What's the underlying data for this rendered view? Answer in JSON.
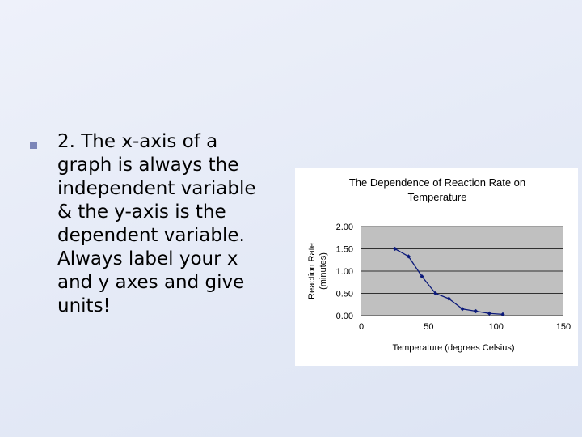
{
  "slide": {
    "bullet_lines": [
      "2. The x-axis of a",
      "graph is always the",
      "independent variable",
      "& the y-axis is the",
      "dependent variable.",
      "Always label your x",
      "and y axes and give",
      "units!"
    ]
  },
  "colors": {
    "plot_area": "#c0c0c0",
    "series": "#0c1a7a",
    "bullet": "#7b85b8"
  },
  "chart_data": {
    "type": "line",
    "title_lines": [
      "The Dependence of Reaction Rate on",
      "Temperature"
    ],
    "xlabel": "Temperature (degrees Celsius)",
    "ylabel_lines": [
      "Reaction Rate",
      "(minutes)"
    ],
    "xlim": [
      0,
      150
    ],
    "ylim": [
      0,
      2
    ],
    "x_ticks": [
      "0",
      "50",
      "100",
      "150"
    ],
    "y_ticks": [
      "0.00",
      "0.50",
      "1.00",
      "1.50",
      "2.00"
    ],
    "grid": "horizontal",
    "legend": "none",
    "x": [
      25,
      35,
      45,
      55,
      65,
      75,
      85,
      95,
      105
    ],
    "y": [
      1.5,
      1.33,
      0.88,
      0.5,
      0.38,
      0.15,
      0.1,
      0.05,
      0.03
    ]
  }
}
